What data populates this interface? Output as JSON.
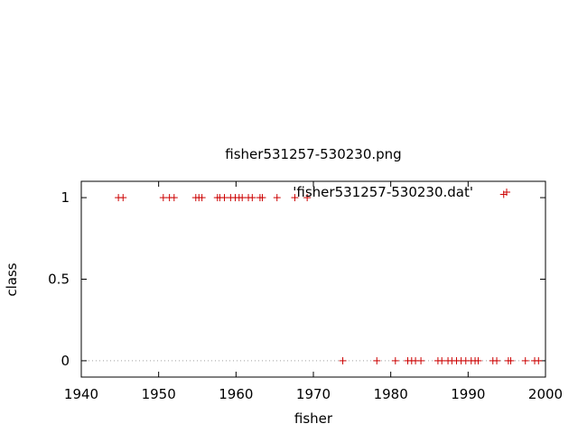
{
  "chart_data": {
    "type": "scatter",
    "title": "fisher531257-530230.png",
    "xlabel": "fisher",
    "ylabel": "class",
    "xlim": [
      1940,
      2000
    ],
    "ylim": [
      -0.1,
      1.1
    ],
    "xticks": [
      "1940",
      "1950",
      "1960",
      "1970",
      "1980",
      "1990",
      "2000"
    ],
    "yticks": [
      "0",
      "0.5",
      "1"
    ],
    "zero_line": true,
    "series": [
      {
        "name": "'fisher531257-530230.dat'",
        "color": "#cc0000",
        "marker": "plus",
        "points": [
          [
            1944.8,
            1
          ],
          [
            1945.4,
            1
          ],
          [
            1950.6,
            1
          ],
          [
            1951.4,
            1
          ],
          [
            1952.0,
            1
          ],
          [
            1954.8,
            1
          ],
          [
            1955.2,
            1
          ],
          [
            1955.6,
            1
          ],
          [
            1957.6,
            1
          ],
          [
            1957.9,
            1
          ],
          [
            1958.5,
            1
          ],
          [
            1959.3,
            1
          ],
          [
            1959.9,
            1
          ],
          [
            1960.4,
            1
          ],
          [
            1960.8,
            1
          ],
          [
            1961.6,
            1
          ],
          [
            1962.1,
            1
          ],
          [
            1963.1,
            1
          ],
          [
            1963.4,
            1
          ],
          [
            1965.3,
            1
          ],
          [
            1967.6,
            1
          ],
          [
            1969.2,
            1
          ],
          [
            1994.6,
            1.02
          ],
          [
            1973.8,
            0
          ],
          [
            1978.2,
            0
          ],
          [
            1980.6,
            0
          ],
          [
            1982.2,
            0
          ],
          [
            1982.7,
            0
          ],
          [
            1983.2,
            0
          ],
          [
            1983.9,
            0
          ],
          [
            1986.1,
            0
          ],
          [
            1986.6,
            0
          ],
          [
            1987.4,
            0
          ],
          [
            1987.9,
            0
          ],
          [
            1988.5,
            0
          ],
          [
            1989.1,
            0
          ],
          [
            1989.7,
            0
          ],
          [
            1990.4,
            0
          ],
          [
            1990.9,
            0
          ],
          [
            1991.3,
            0
          ],
          [
            1993.2,
            0
          ],
          [
            1993.7,
            0
          ],
          [
            1995.2,
            0
          ],
          [
            1995.5,
            0
          ],
          [
            1997.4,
            0
          ],
          [
            1998.6,
            0
          ],
          [
            1999.1,
            0
          ]
        ]
      }
    ]
  }
}
